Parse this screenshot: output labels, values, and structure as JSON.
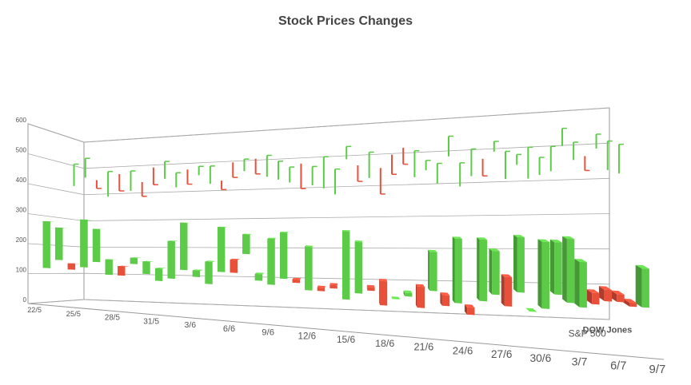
{
  "chart_data": {
    "type": "bar3d",
    "title": "Stock Prices Changes",
    "categories": [
      "22/5",
      null,
      null,
      "25/5",
      null,
      null,
      "28/5",
      null,
      null,
      "31/5",
      null,
      null,
      "3/6",
      null,
      null,
      "6/6",
      null,
      null,
      "9/6",
      null,
      null,
      "12/6",
      null,
      null,
      "15/6",
      null,
      null,
      "18/6",
      null,
      null,
      "21/6",
      null,
      null,
      "24/6",
      null,
      null,
      "27/6",
      null,
      null,
      "30/6",
      null,
      null,
      "3/7",
      null,
      null,
      "6/7",
      null,
      null,
      "9/7"
    ],
    "series": [
      {
        "name": "S&P 500",
        "open": [
          420,
          450,
          440,
          380,
          460,
          400,
          430,
          480,
          440,
          410,
          470,
          450,
          420,
          430,
          490,
          460,
          500,
          440,
          430,
          420,
          480,
          410,
          400,
          380,
          490,
          470,
          430,
          460,
          500,
          520,
          430,
          450,
          410,
          490,
          400,
          430,
          480,
          500,
          420,
          460,
          420,
          430,
          440,
          510,
          470,
          480,
          500,
          440,
          430
        ],
        "close": [
          500,
          520,
          410,
          470,
          400,
          470,
          380,
          420,
          500,
          460,
          420,
          480,
          480,
          400,
          440,
          500,
          450,
          510,
          490,
          470,
          400,
          470,
          500,
          460,
          530,
          420,
          510,
          380,
          440,
          470,
          510,
          480,
          470,
          550,
          470,
          510,
          430,
          530,
          500,
          490,
          510,
          480,
          510,
          560,
          520,
          440,
          540,
          520,
          510
        ]
      },
      {
        "name": "DOW Jones",
        "open": [
          120,
          150,
          140,
          130,
          150,
          110,
          140,
          150,
          120,
          100,
          110,
          140,
          120,
          100,
          140,
          180,
          200,
          120,
          110,
          130,
          130,
          100,
          110,
          120,
          80,
          100,
          120,
          140,
          90,
          100,
          130,
          120,
          110,
          90,
          80,
          100,
          120,
          170,
          130,
          80,
          90,
          130,
          110,
          100,
          140,
          150,
          140,
          120,
          110
        ],
        "close": [
          280,
          260,
          120,
          290,
          260,
          160,
          110,
          170,
          160,
          140,
          230,
          290,
          140,
          170,
          280,
          140,
          260,
          140,
          250,
          270,
          120,
          230,
          100,
          110,
          280,
          250,
          110,
          70,
          90,
          110,
          70,
          230,
          80,
          270,
          60,
          270,
          240,
          90,
          280,
          80,
          270,
          270,
          280,
          220,
          110,
          120,
          120,
          110,
          210
        ]
      }
    ],
    "up_color": "#5ccb47",
    "down_color": "#e8503a",
    "ylim": [
      0,
      600
    ],
    "yticks": [
      0,
      100,
      200,
      300,
      400,
      500,
      600
    ],
    "grid": true
  }
}
